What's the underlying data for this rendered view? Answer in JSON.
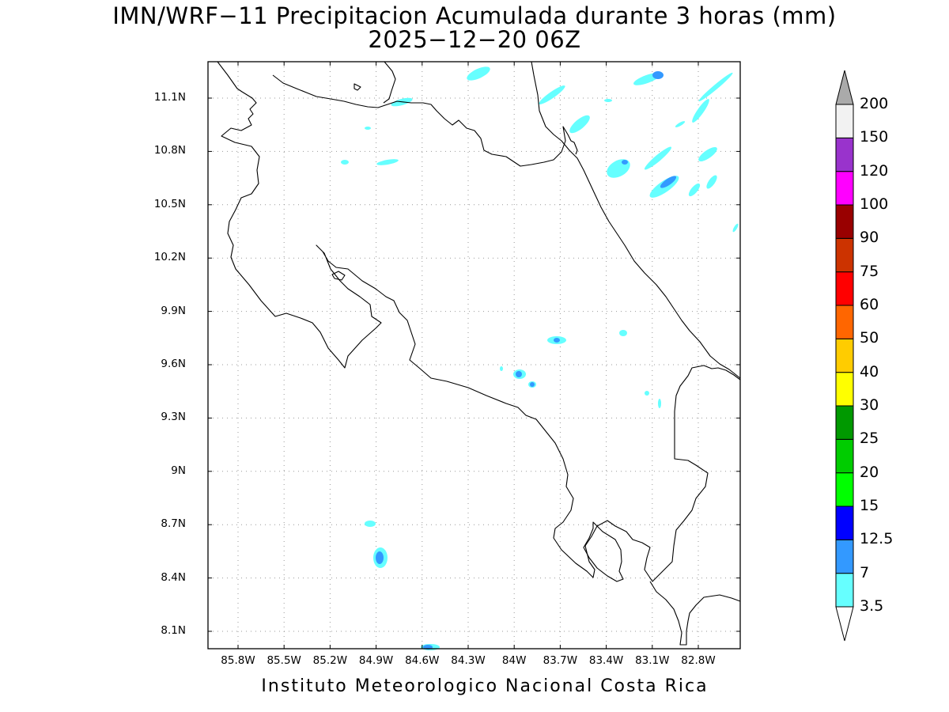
{
  "title": {
    "line1": "IMN/WRF−11 Precipitacion Acumulada durante 3 horas (mm)",
    "line2": "2025−12−20 06Z"
  },
  "credit": "Instituto Meteorologico Nacional Costa Rica",
  "map": {
    "lat_labels": [
      "11.1N",
      "10.8N",
      "10.5N",
      "10.2N",
      "9.9N",
      "9.6N",
      "9.3N",
      "9N",
      "8.7N",
      "8.4N",
      "8.1N"
    ],
    "lon_labels": [
      "85.8W",
      "85.5W",
      "85.2W",
      "84.9W",
      "84.6W",
      "84.3W",
      "84W",
      "83.7W",
      "83.4W",
      "83.1W",
      "82.8W"
    ],
    "grid": "dotted",
    "coastline_color": "#000000"
  },
  "colorbar": {
    "labels": [
      "3.5",
      "7",
      "12.5",
      "15",
      "20",
      "25",
      "30",
      "40",
      "50",
      "60",
      "75",
      "90",
      "100",
      "120",
      "150",
      "200"
    ],
    "colors": [
      "#ffffff",
      "#66ffff",
      "#3399ff",
      "#0000ff",
      "#00ff00",
      "#00cc00",
      "#009900",
      "#ffff00",
      "#ffcc00",
      "#ff6600",
      "#ff0000",
      "#cc3300",
      "#990000",
      "#ff00ff",
      "#9933cc",
      "#f2f2f2",
      "#aaaaaa"
    ]
  }
}
